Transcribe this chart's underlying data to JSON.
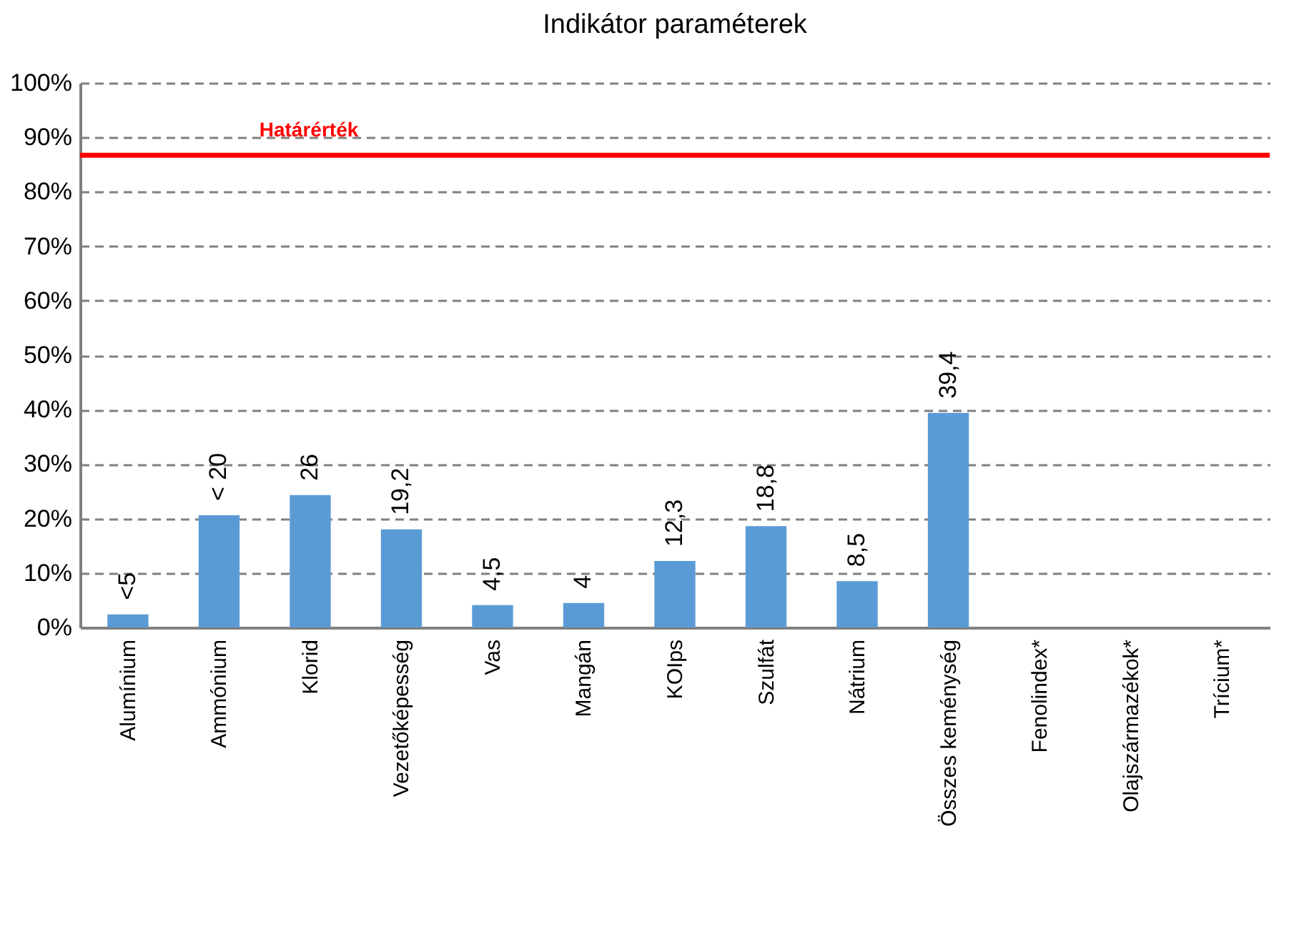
{
  "chart_data": {
    "type": "bar",
    "title": "Indikátor paraméterek",
    "categories": [
      "Alumínium",
      "Ammónium",
      "Klorid",
      "Vezetőképesség",
      "Vas",
      "Mangán",
      "KOIps",
      "Szulfát",
      "Nátrium",
      "Összes keménység",
      "Fenolindex*",
      "Olajszármazékok*",
      "Trícium*"
    ],
    "values": [
      2.4,
      20.6,
      24.3,
      18.0,
      4.1,
      4.5,
      12.2,
      18.6,
      8.5,
      39.4,
      null,
      null,
      null
    ],
    "annotations": [
      {
        "text": "<5",
        "x": "Alumínium",
        "y": 2.4
      },
      {
        "text": "< 20",
        "x": "Ammónium",
        "y": 20.6
      },
      {
        "text": "26",
        "x": "Klorid",
        "y": 24.3
      },
      {
        "text": "19,2",
        "x": "Vezetőképesség",
        "y": 18.0
      },
      {
        "text": "4,5",
        "x": "Vas",
        "y": 4.1
      },
      {
        "text": "4",
        "x": "Mangán",
        "y": 4.5
      },
      {
        "text": "12,3",
        "x": "KOIps",
        "y": 12.2
      },
      {
        "text": "18,8",
        "x": "Szulfát",
        "y": 18.6
      },
      {
        "text": "8,5",
        "x": "Nátrium",
        "y": 8.5
      },
      {
        "text": "39,4",
        "x": "Összes keménység",
        "y": 39.4
      }
    ],
    "color": "#5b9bd5",
    "ylim": [
      0,
      100
    ],
    "yticks": [
      {
        "value": 0,
        "label": "0%"
      },
      {
        "value": 10,
        "label": "10%"
      },
      {
        "value": 20,
        "label": "20%"
      },
      {
        "value": 30,
        "label": "30%"
      },
      {
        "value": 40,
        "label": "40%"
      },
      {
        "value": 50,
        "label": "50%"
      },
      {
        "value": 60,
        "label": "60%"
      },
      {
        "value": 70,
        "label": "70%"
      },
      {
        "value": 80,
        "label": "80%"
      },
      {
        "value": 90,
        "label": "90%"
      },
      {
        "value": 100,
        "label": "100%"
      }
    ],
    "grid": "y",
    "ref_lines": [
      {
        "axis": "y",
        "value": 86.7,
        "label": "Határérték",
        "color": "#ff0000"
      }
    ]
  }
}
